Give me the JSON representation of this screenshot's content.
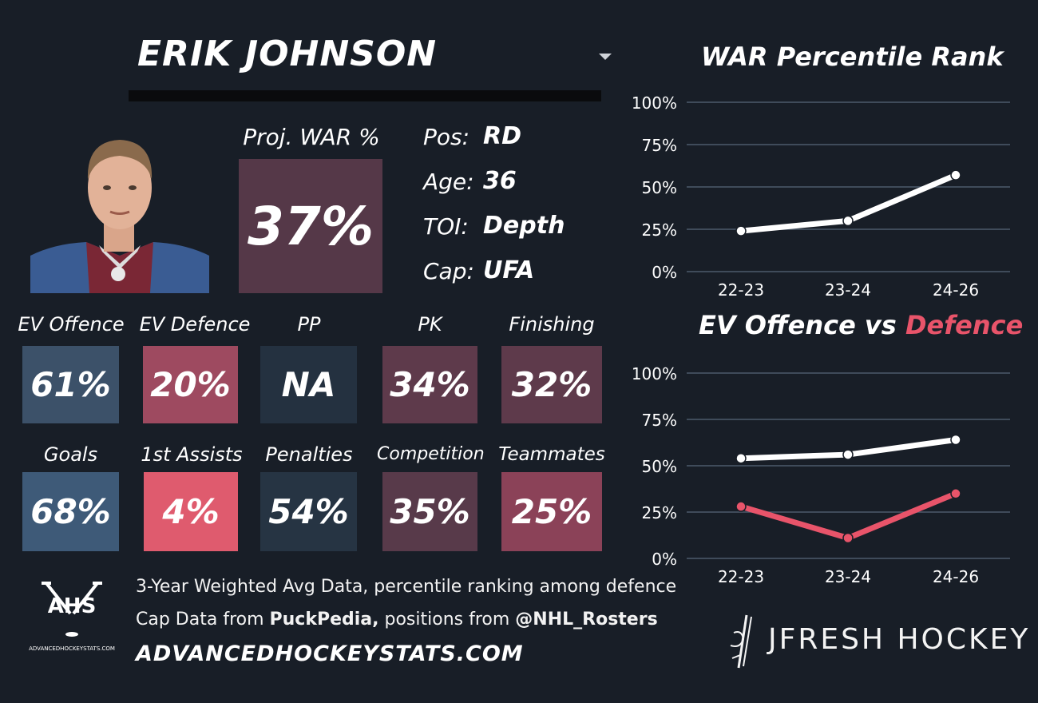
{
  "player": {
    "name": "ERIK JOHNSON",
    "proj_war_label": "Proj. WAR %",
    "proj_war_value": "37%",
    "info": [
      {
        "label": "Pos:",
        "value": "RD"
      },
      {
        "label": "Age:",
        "value": "36"
      },
      {
        "label": "TOI:",
        "value": "Depth"
      },
      {
        "label": "Cap:",
        "value": "UFA"
      }
    ]
  },
  "stats_row1": [
    {
      "label": "EV Offence",
      "value": "61%",
      "color": "#3c5169"
    },
    {
      "label": "EV Defence",
      "value": "20%",
      "color": "#9e4a60"
    },
    {
      "label": "PP",
      "value": "NA",
      "color": "#243140"
    },
    {
      "label": "PK",
      "value": "34%",
      "color": "#5e3a4b"
    },
    {
      "label": "Finishing",
      "value": "32%",
      "color": "#5e3a4b"
    }
  ],
  "stats_row2": [
    {
      "label": "Goals",
      "value": "68%",
      "color": "#3e5a78"
    },
    {
      "label": "1st Assists",
      "value": "4%",
      "color": "#df5b6e"
    },
    {
      "label": "Penalties",
      "value": "54%",
      "color": "#263443"
    },
    {
      "label": "Competition",
      "value": "35%",
      "color": "#583a4a"
    },
    {
      "label": "Teammates",
      "value": "25%",
      "color": "#8b4258"
    }
  ],
  "footer": {
    "note1": "3-Year Weighted Avg Data, percentile ranking among defence",
    "note2_prefix": "Cap Data from ",
    "note2_puckpedia": "PuckPedia,",
    "note2_middle": " positions from ",
    "note2_rosters": "@NHL_Rosters",
    "site": "ADVANCEDHOCKEYSTATS.COM",
    "ahs_logo_text": "AHS",
    "ahs_logo_sub": "ADVANCEDHOCKEYSTATS.COM",
    "brand": "JFRESH HOCKEY"
  },
  "colors": {
    "background": "#181e27",
    "line_white": "#ffffff",
    "line_red": "#e8546a",
    "grid": "#4c5a6c"
  },
  "chart_data": [
    {
      "type": "line",
      "title": "WAR Percentile Rank",
      "categories": [
        "22-23",
        "23-24",
        "24-26"
      ],
      "series": [
        {
          "values": [
            24,
            30,
            57
          ],
          "color": "#ffffff"
        }
      ],
      "ylim": [
        0,
        100
      ],
      "yticks": [
        "0%",
        "25%",
        "50%",
        "75%",
        "100%"
      ],
      "grid": true
    },
    {
      "type": "line",
      "title_part1": "EV Offence vs ",
      "title_part2": "Defence",
      "categories": [
        "22-23",
        "23-24",
        "24-26"
      ],
      "series": [
        {
          "values": [
            54,
            56,
            64
          ],
          "color": "#ffffff"
        },
        {
          "values": [
            28,
            11,
            35
          ],
          "color": "#e8546a"
        }
      ],
      "ylim": [
        0,
        100
      ],
      "yticks": [
        "0%",
        "25%",
        "50%",
        "75%",
        "100%"
      ],
      "grid": true
    }
  ]
}
